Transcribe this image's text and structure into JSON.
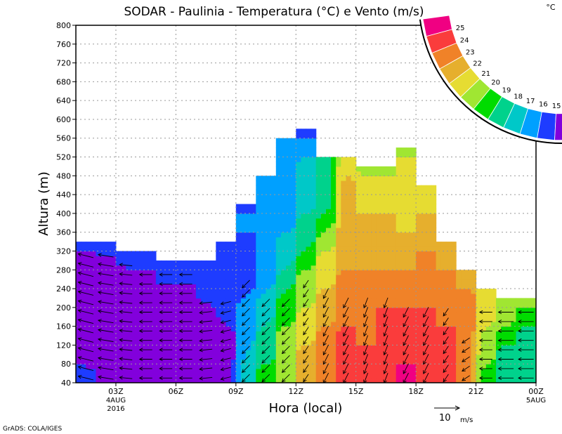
{
  "chart_data": {
    "type": "heatmap",
    "title": "SODAR - Paulinia - Temperatura (°C) e Vento (m/s)",
    "xlabel": "Hora (local)",
    "ylabel": "Altura (m)",
    "ylim": [
      40,
      800
    ],
    "yticks": [
      40,
      80,
      120,
      160,
      200,
      240,
      280,
      320,
      360,
      400,
      440,
      480,
      520,
      560,
      600,
      640,
      680,
      720,
      760,
      800
    ],
    "xlim_hours": [
      1,
      24
    ],
    "xticks": [
      {
        "hour": 3,
        "label": "03Z",
        "sub1": "4AUG",
        "sub2": "2016"
      },
      {
        "hour": 6,
        "label": "06Z"
      },
      {
        "hour": 9,
        "label": "09Z"
      },
      {
        "hour": 12,
        "label": "12Z"
      },
      {
        "hour": 15,
        "label": "15Z"
      },
      {
        "hour": 18,
        "label": "18Z"
      },
      {
        "hour": 21,
        "label": "21Z"
      },
      {
        "hour": 24,
        "label": "00Z",
        "sub1": "5AUG"
      }
    ],
    "grid": true,
    "colorbar": {
      "unit": "°C",
      "levels": [
        15,
        16,
        17,
        18,
        19,
        20,
        21,
        22,
        23,
        24,
        25
      ],
      "colors": [
        "#8200dc",
        "#1e3cff",
        "#00a0ff",
        "#00c8c8",
        "#00d28c",
        "#00dc00",
        "#a0e632",
        "#e6dc32",
        "#e6af2d",
        "#f08228",
        "#fa3c3c",
        "#f00082"
      ]
    },
    "level_step_m": 40,
    "temperature_columns": [
      {
        "hour": 1.5,
        "top": 340,
        "t": [
          15.3,
          14.5,
          14.5,
          14.5,
          14.5,
          14.5,
          14.5,
          15.5
        ]
      },
      {
        "hour": 2.5,
        "top": 340,
        "t": [
          14.5,
          14.5,
          14.5,
          14.5,
          14.5,
          14.5,
          14.8,
          15.5
        ]
      },
      {
        "hour": 3.5,
        "top": 320,
        "t": [
          14.5,
          14.5,
          14.5,
          14.5,
          14.5,
          14.5,
          15.3,
          15.5
        ]
      },
      {
        "hour": 4.5,
        "top": 320,
        "t": [
          14.5,
          14.5,
          14.5,
          14.5,
          14.5,
          14.5,
          15.3,
          15.5
        ]
      },
      {
        "hour": 5.5,
        "top": 300,
        "t": [
          14.5,
          14.5,
          14.5,
          14.5,
          14.5,
          15.3,
          15.5
        ]
      },
      {
        "hour": 6.5,
        "top": 300,
        "t": [
          14.3,
          14.3,
          14.3,
          14.3,
          14.3,
          15.2,
          15.5
        ]
      },
      {
        "hour": 7.5,
        "top": 300,
        "t": [
          14.3,
          14.3,
          14.3,
          14.5,
          15.2,
          15.5,
          15.5
        ]
      },
      {
        "hour": 8.5,
        "top": 340,
        "t": [
          14.5,
          14.5,
          14.5,
          15.2,
          15.5,
          15.5,
          15.5,
          15.5
        ]
      },
      {
        "hour": 9.5,
        "top": 420,
        "t": [
          17.5,
          17,
          16.5,
          16.5,
          16,
          15.5,
          15.5,
          15.5,
          16.5,
          15.5
        ]
      },
      {
        "hour": 10.5,
        "top": 480,
        "t": [
          19.5,
          18.5,
          18.5,
          17.5,
          17.2,
          16.5,
          16.5,
          16.2,
          16.2,
          16.2,
          16.2
        ]
      },
      {
        "hour": 11.5,
        "top": 560,
        "t": [
          20.5,
          20.5,
          20.5,
          19.5,
          19.5,
          18.5,
          17.5,
          17.5,
          16.5,
          16.5,
          16.5,
          16.3,
          16.3
        ]
      },
      {
        "hour": 12.5,
        "top": 580,
        "t": [
          22.5,
          22.5,
          21.5,
          21.5,
          20.5,
          20.5,
          19.5,
          18.5,
          18.5,
          17.5,
          17.5,
          17.5,
          16.5,
          15.5
        ]
      },
      {
        "hour": 13.5,
        "top": 520,
        "t": [
          23.5,
          23.5,
          23.5,
          22.5,
          22.5,
          21.5,
          21.5,
          20.5,
          19.5,
          18.5,
          18.5,
          18.5
        ]
      },
      {
        "hour": 14.5,
        "top": 520,
        "t": [
          24.5,
          24.5,
          24.5,
          23.5,
          23.5,
          23.5,
          22.5,
          22.5,
          22.5,
          22.5,
          22.5,
          21.5
        ]
      },
      {
        "hour": 15.5,
        "top": 500,
        "t": [
          24.5,
          24.5,
          23.5,
          23.5,
          23.5,
          23.5,
          22.5,
          22.5,
          22.5,
          21.5,
          21.5,
          20.5
        ]
      },
      {
        "hour": 16.5,
        "top": 500,
        "t": [
          24.5,
          24.5,
          24.5,
          24.5,
          23.5,
          23.5,
          22.5,
          22.5,
          22.5,
          21.5,
          21.5,
          20.5
        ]
      },
      {
        "hour": 17.5,
        "top": 540,
        "t": [
          25.5,
          24.5,
          24.5,
          24.5,
          23.5,
          23.5,
          22.5,
          22.5,
          21.5,
          21.5,
          21.5,
          21.5,
          20.5
        ]
      },
      {
        "hour": 18.5,
        "top": 460,
        "t": [
          24.5,
          24.5,
          24.5,
          24.5,
          23.5,
          23.5,
          23.5,
          22.5,
          22.5,
          21.5,
          21.5
        ]
      },
      {
        "hour": 19.5,
        "top": 340,
        "t": [
          24.5,
          24.5,
          24.5,
          23.5,
          23.5,
          23.5,
          22.5,
          22.5
        ]
      },
      {
        "hour": 20.5,
        "top": 280,
        "t": [
          23.5,
          23.5,
          23.5,
          23.5,
          23.5,
          22.5
        ]
      },
      {
        "hour": 21.5,
        "top": 240,
        "t": [
          19.5,
          20.5,
          20.5,
          21.5,
          21.5
        ]
      },
      {
        "hour": 22.5,
        "top": 220,
        "t": [
          18.5,
          18.5,
          19.5,
          20.5,
          20.5
        ]
      },
      {
        "hour": 23.5,
        "top": 220,
        "t": [
          18.5,
          18.5,
          18.5,
          19.5,
          20.5
        ]
      }
    ],
    "wind": {
      "reference": {
        "value": 10,
        "label": "10",
        "unit": "m/s"
      },
      "columns": [
        {
          "hour": 1.5,
          "u": -6,
          "v": 1.5,
          "top": 320
        },
        {
          "hour": 2.5,
          "u": -6,
          "v": 1,
          "top": 320
        },
        {
          "hour": 3.5,
          "u": -5,
          "v": 0.5,
          "top": 300
        },
        {
          "hour": 4.5,
          "u": -5,
          "v": 0,
          "top": 280
        },
        {
          "hour": 5.5,
          "u": -5,
          "v": 0,
          "top": 280
        },
        {
          "hour": 6.5,
          "u": -5,
          "v": 0,
          "top": 280
        },
        {
          "hour": 7.5,
          "u": -5,
          "v": -0.5,
          "top": 220
        },
        {
          "hour": 8.5,
          "u": -4,
          "v": -1,
          "top": 220
        },
        {
          "hour": 9.5,
          "u": -3,
          "v": -3,
          "top": 260
        },
        {
          "hour": 10.5,
          "u": -3,
          "v": -3,
          "top": 220
        },
        {
          "hour": 11.5,
          "u": -3,
          "v": -3,
          "top": 220
        },
        {
          "hour": 12.5,
          "u": -2,
          "v": -3,
          "top": 260
        },
        {
          "hour": 13.5,
          "u": -2,
          "v": -4,
          "top": 240
        },
        {
          "hour": 14.5,
          "u": -2,
          "v": -4,
          "top": 220
        },
        {
          "hour": 15.5,
          "u": -1.5,
          "v": -4,
          "top": 220
        },
        {
          "hour": 16.5,
          "u": -1.5,
          "v": -4,
          "top": 220
        },
        {
          "hour": 17.5,
          "u": -2,
          "v": -4,
          "top": 200
        },
        {
          "hour": 18.5,
          "u": -2,
          "v": -4,
          "top": 200
        },
        {
          "hour": 19.5,
          "u": -2,
          "v": -3,
          "top": 200
        },
        {
          "hour": 20.5,
          "u": -3,
          "v": -2,
          "top": 140
        },
        {
          "hour": 21.5,
          "u": -5,
          "v": 0,
          "top": 200
        },
        {
          "hour": 22.5,
          "u": -6,
          "v": 0,
          "top": 200
        },
        {
          "hour": 23.5,
          "u": -6,
          "v": 0,
          "top": 200
        }
      ]
    }
  },
  "footer": "GrADS: COLA/IGES"
}
